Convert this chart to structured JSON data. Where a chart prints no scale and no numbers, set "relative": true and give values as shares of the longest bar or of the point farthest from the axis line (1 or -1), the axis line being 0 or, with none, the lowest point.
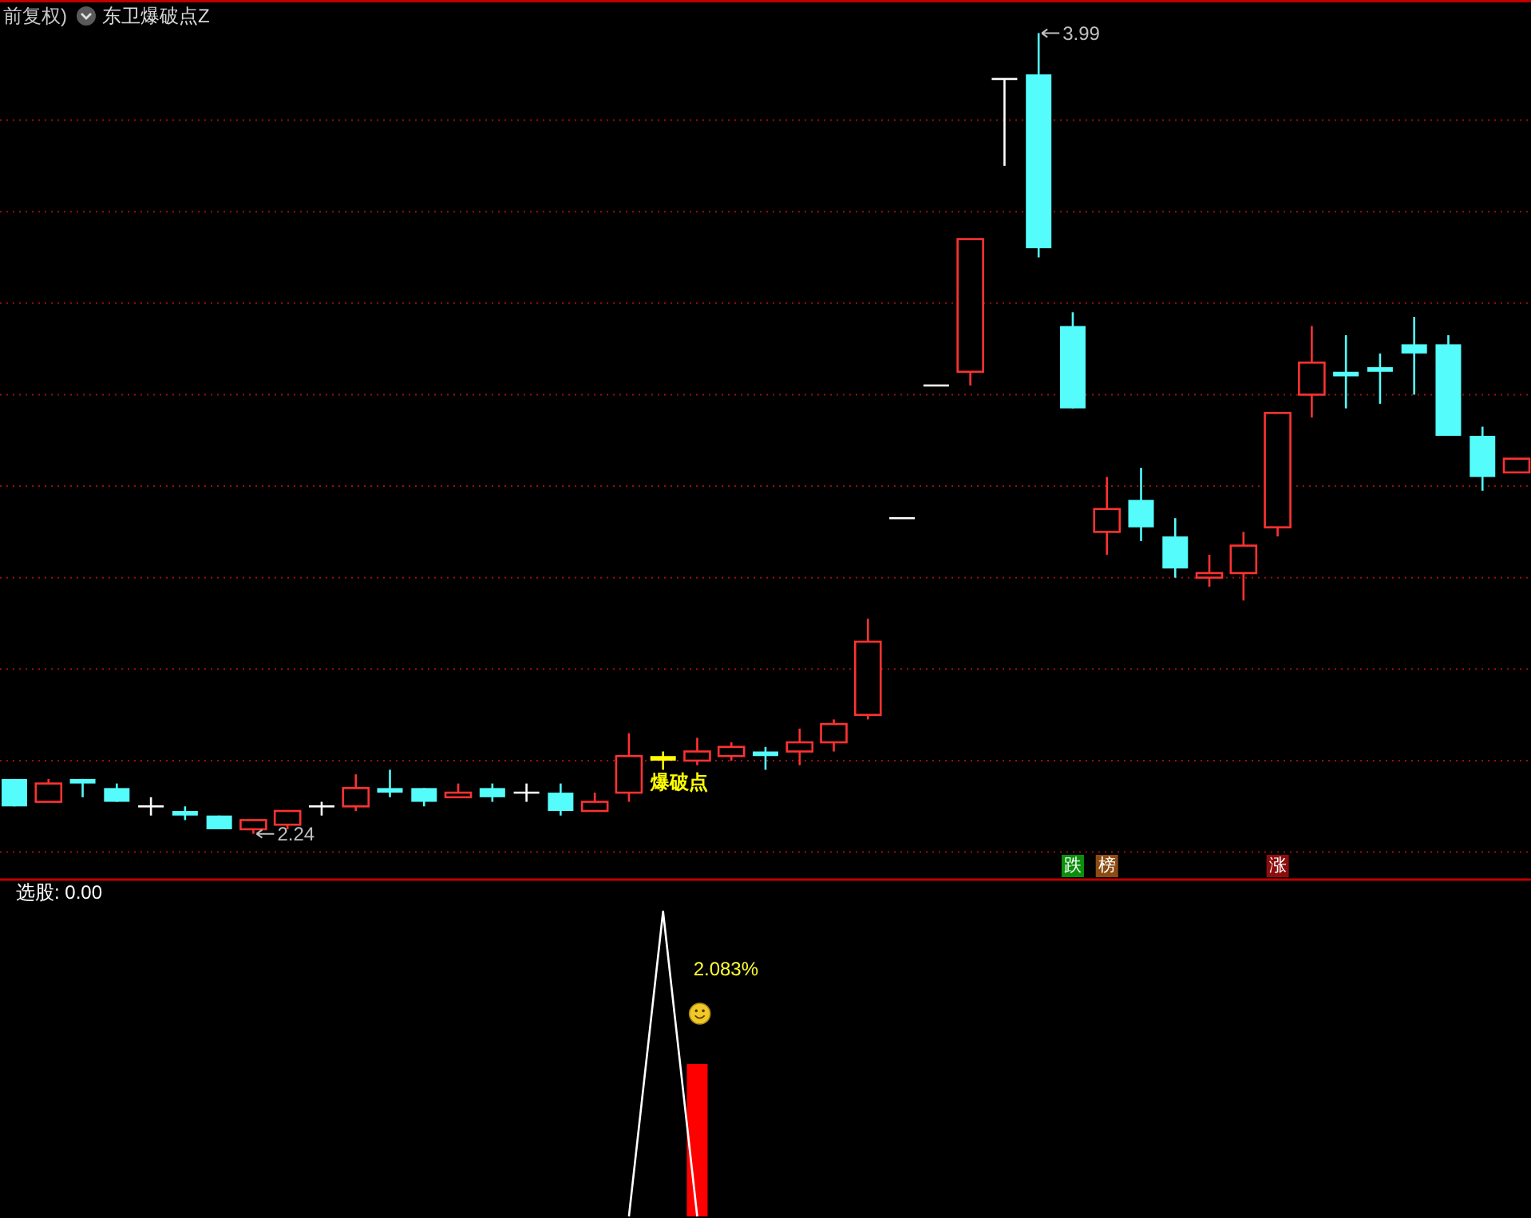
{
  "chart_data": [
    {
      "type": "candlestick",
      "title": "东卫爆破点Z",
      "subtitle": "前复权)",
      "categories": [
        null,
        null,
        null,
        null,
        null,
        null,
        null,
        null,
        null,
        null,
        null,
        null,
        null,
        null,
        null,
        null,
        null,
        null,
        null,
        null,
        null,
        null,
        null,
        null,
        null,
        null,
        null,
        null,
        null,
        null,
        null,
        "跌",
        "榜",
        null,
        null,
        null,
        null,
        "涨",
        null,
        null,
        null,
        null,
        null,
        null,
        null
      ],
      "series": [
        {
          "ohlc": [
            [
              2.36,
              2.36,
              2.3,
              2.3
            ],
            [
              2.31,
              2.36,
              2.31,
              2.35
            ],
            [
              2.36,
              2.36,
              2.32,
              2.35
            ],
            [
              2.34,
              2.35,
              2.31,
              2.31
            ],
            [
              2.3,
              2.32,
              2.28,
              2.3
            ],
            [
              2.29,
              2.3,
              2.27,
              2.28
            ],
            [
              2.28,
              2.28,
              2.25,
              2.25
            ],
            [
              2.25,
              2.27,
              2.24,
              2.27
            ],
            [
              2.26,
              2.29,
              2.25,
              2.29
            ],
            [
              2.3,
              2.31,
              2.28,
              2.3
            ],
            [
              2.3,
              2.37,
              2.29,
              2.34
            ],
            [
              2.34,
              2.38,
              2.32,
              2.33
            ],
            [
              2.34,
              2.34,
              2.3,
              2.31
            ],
            [
              2.32,
              2.35,
              2.32,
              2.33
            ],
            [
              2.34,
              2.35,
              2.31,
              2.32
            ],
            [
              2.33,
              2.35,
              2.31,
              2.33
            ],
            [
              2.33,
              2.35,
              2.28,
              2.29
            ],
            [
              2.29,
              2.33,
              2.29,
              2.31
            ],
            [
              2.33,
              2.46,
              2.31,
              2.41
            ],
            null,
            [
              2.4,
              2.45,
              2.39,
              2.42
            ],
            [
              2.41,
              2.44,
              2.4,
              2.43
            ],
            [
              2.42,
              2.43,
              2.38,
              2.41
            ],
            [
              2.42,
              2.47,
              2.39,
              2.44
            ],
            [
              2.44,
              2.49,
              2.42,
              2.48
            ],
            [
              2.5,
              2.71,
              2.49,
              2.66
            ],
            [
              2.93,
              2.93,
              2.93,
              2.93
            ],
            [
              3.22,
              3.22,
              3.22,
              3.22
            ],
            [
              3.25,
              3.54,
              3.22,
              3.54
            ],
            [
              3.89,
              3.89,
              3.7,
              3.89
            ],
            [
              3.9,
              3.99,
              3.5,
              3.52
            ],
            [
              3.35,
              3.38,
              3.17,
              3.17
            ],
            [
              2.9,
              3.02,
              2.85,
              2.95
            ],
            [
              2.97,
              3.04,
              2.88,
              2.91
            ],
            [
              2.89,
              2.93,
              2.8,
              2.82
            ],
            [
              2.8,
              2.85,
              2.78,
              2.81
            ],
            [
              2.81,
              2.9,
              2.75,
              2.87
            ],
            [
              2.91,
              3.16,
              2.89,
              3.16
            ],
            [
              3.2,
              3.35,
              3.15,
              3.27
            ],
            [
              3.25,
              3.33,
              3.17,
              3.24
            ],
            [
              3.26,
              3.29,
              3.18,
              3.25
            ],
            [
              3.31,
              3.37,
              3.2,
              3.29
            ],
            [
              3.31,
              3.33,
              3.11,
              3.11
            ],
            [
              3.11,
              3.13,
              2.99,
              3.02
            ],
            [
              3.03,
              3.06,
              3.03,
              3.06
            ]
          ],
          "colors": [
            "#54fcfc",
            "#ff3232",
            "#54fcfc",
            "#54fcfc",
            "#ffffff",
            "#54fcfc",
            "#54fcfc",
            "#ff3232",
            "#ff3232",
            "#ffffff",
            "#ff3232",
            "#54fcfc",
            "#54fcfc",
            "#ff3232",
            "#54fcfc",
            "#ffffff",
            "#54fcfc",
            "#ff3232",
            "#ff3232",
            null,
            "#ff3232",
            "#ff3232",
            "#54fcfc",
            "#ff3232",
            "#ff3232",
            "#ff3232",
            "#ffffff",
            "#ffffff",
            "#ff3232",
            "#ffffff",
            "#54fcfc",
            "#54fcfc",
            "#ff3232",
            "#54fcfc",
            "#54fcfc",
            "#ff3232",
            "#ff3232",
            "#ff3232",
            "#ff3232",
            "#54fcfc",
            "#54fcfc",
            "#54fcfc",
            "#54fcfc",
            "#54fcfc",
            "#ff3232"
          ],
          "value_labels": [
            null,
            null,
            null,
            null,
            null,
            null,
            null,
            "2.24",
            null,
            null,
            null,
            null,
            null,
            null,
            null,
            null,
            null,
            null,
            null,
            null,
            null,
            null,
            null,
            null,
            null,
            null,
            null,
            null,
            null,
            null,
            "3.99",
            null,
            null,
            null,
            null,
            null,
            null,
            null,
            null,
            null,
            null,
            null,
            null,
            null,
            null
          ]
        },
        {
          "name": "爆破点",
          "color": "#ffff00",
          "ohlc": [
            null,
            null,
            null,
            null,
            null,
            null,
            null,
            null,
            null,
            null,
            null,
            null,
            null,
            null,
            null,
            null,
            null,
            null,
            null,
            [
              2.41,
              2.42,
              2.38,
              2.4
            ],
            null,
            null,
            null,
            null,
            null,
            null,
            null,
            null,
            null,
            null,
            null,
            null,
            null,
            null,
            null,
            null,
            null,
            null,
            null,
            null,
            null,
            null,
            null,
            null,
            null
          ]
        }
      ],
      "ylim": [
        2.14,
        4.06
      ],
      "yticks": [
        {
          "value": 2.2,
          "label": null
        },
        {
          "value": 2.4,
          "label": null
        },
        {
          "value": 2.6,
          "label": null
        },
        {
          "value": 2.8,
          "label": null
        },
        {
          "value": 3.0,
          "label": null
        },
        {
          "value": 3.2,
          "label": null
        },
        {
          "value": 3.4,
          "label": null
        },
        {
          "value": 3.6,
          "label": null
        },
        {
          "value": 3.8,
          "label": null
        }
      ],
      "grid": "y",
      "tick_labels": "x"
    },
    {
      "type": "line",
      "relative": true,
      "categories": [
        null,
        null,
        null,
        null,
        null,
        null,
        null,
        null,
        null,
        null,
        null,
        null,
        null,
        null,
        null,
        null,
        null,
        null,
        null,
        null,
        null,
        null,
        null,
        null,
        null,
        null,
        null,
        null,
        null,
        null,
        null,
        null,
        null,
        null,
        null,
        null,
        null,
        null,
        null,
        null,
        null,
        null,
        null,
        null,
        null
      ],
      "series": [
        {
          "name": "选股: 0.00",
          "color": "#ffffff",
          "values": [
            null,
            null,
            null,
            null,
            null,
            null,
            null,
            null,
            null,
            null,
            null,
            null,
            null,
            null,
            null,
            null,
            null,
            null,
            0,
            1,
            0,
            null,
            null,
            null,
            null,
            null,
            null,
            null,
            null,
            null,
            null,
            null,
            null,
            null,
            null,
            null,
            null,
            null,
            null,
            null,
            null,
            null,
            null,
            null,
            null
          ]
        },
        {
          "type": "bar",
          "color": "#ff0000",
          "values": [
            null,
            null,
            null,
            null,
            null,
            null,
            null,
            null,
            null,
            null,
            null,
            null,
            null,
            null,
            null,
            null,
            null,
            null,
            null,
            null,
            0.5,
            null,
            null,
            null,
            null,
            null,
            null,
            null,
            null,
            null,
            null,
            null,
            null,
            null,
            null,
            null,
            null,
            null,
            null,
            null,
            null,
            null,
            null,
            null,
            null
          ]
        }
      ],
      "annotations": [
        "2.083%"
      ]
    }
  ]
}
